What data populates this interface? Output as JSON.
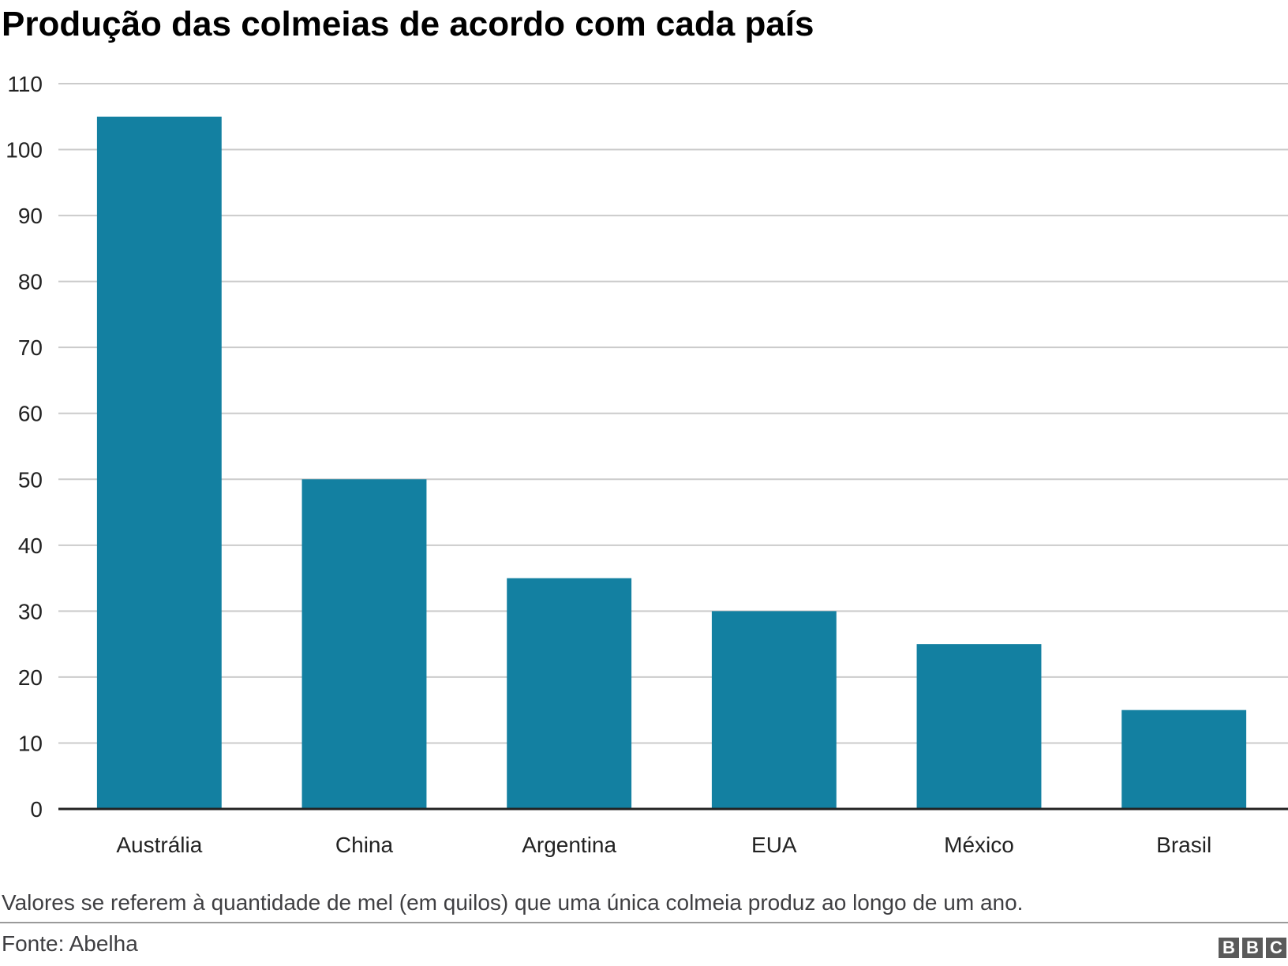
{
  "title": "Produção das colmeias de acordo com cada país",
  "note": "Valores se referem à quantidade de mel (em quilos) que uma única colmeia produz ao longo de um ano.",
  "source": "Fonte: Abelha",
  "logo": [
    "B",
    "B",
    "C"
  ],
  "colors": {
    "bar": "#1380A1",
    "grid": "#cbcbcb",
    "axis": "#222222",
    "text": "#222222"
  },
  "chart_data": {
    "type": "bar",
    "categories": [
      "Austrália",
      "China",
      "Argentina",
      "EUA",
      "México",
      "Brasil"
    ],
    "values": [
      105,
      50,
      35,
      30,
      25,
      15
    ],
    "title": "Produção das colmeias de acordo com cada país",
    "xlabel": "",
    "ylabel": "",
    "ylim": [
      0,
      110
    ],
    "yticks": [
      0,
      10,
      20,
      30,
      40,
      50,
      60,
      70,
      80,
      90,
      100,
      110
    ],
    "grid": true,
    "legend": "none"
  }
}
